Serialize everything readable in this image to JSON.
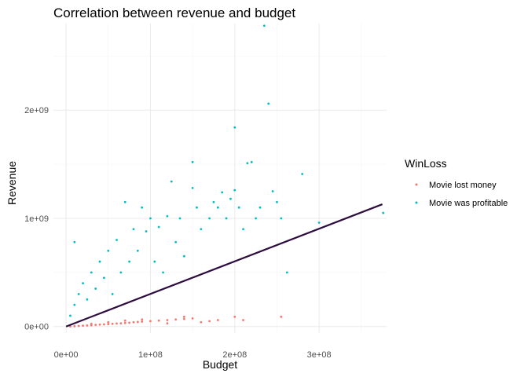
{
  "chart_data": {
    "type": "scatter",
    "title": "Correlation between revenue and budget",
    "xlabel": "Budget",
    "ylabel": "Revenue",
    "xlim": [
      -15000000,
      380000000
    ],
    "ylim": [
      -60000000,
      2800000000
    ],
    "xticks": [
      0,
      100000000,
      200000000,
      300000000
    ],
    "xtick_labels": [
      "0e+00",
      "1e+08",
      "2e+08",
      "3e+08"
    ],
    "yticks": [
      0,
      1000000000,
      2000000000
    ],
    "ytick_labels": [
      "0e+00",
      "1e+09",
      "2e+09"
    ],
    "grid": true,
    "legend": {
      "title": "WinLoss",
      "position": "right"
    },
    "series": [
      {
        "name": "Movie lost money",
        "color": "#F8766D",
        "points": [
          [
            5000000,
            1000000
          ],
          [
            10000000,
            3000000
          ],
          [
            15000000,
            5000000
          ],
          [
            20000000,
            8000000
          ],
          [
            25000000,
            10000000
          ],
          [
            30000000,
            12000000
          ],
          [
            35000000,
            15000000
          ],
          [
            40000000,
            18000000
          ],
          [
            45000000,
            20000000
          ],
          [
            50000000,
            22000000
          ],
          [
            55000000,
            25000000
          ],
          [
            60000000,
            28000000
          ],
          [
            65000000,
            30000000
          ],
          [
            70000000,
            33000000
          ],
          [
            75000000,
            35000000
          ],
          [
            80000000,
            40000000
          ],
          [
            85000000,
            42000000
          ],
          [
            90000000,
            45000000
          ],
          [
            100000000,
            50000000
          ],
          [
            110000000,
            55000000
          ],
          [
            120000000,
            60000000
          ],
          [
            130000000,
            65000000
          ],
          [
            140000000,
            70000000
          ],
          [
            150000000,
            75000000
          ],
          [
            160000000,
            40000000
          ],
          [
            170000000,
            50000000
          ],
          [
            180000000,
            60000000
          ],
          [
            200000000,
            90000000
          ],
          [
            210000000,
            60000000
          ],
          [
            255000000,
            90000000
          ],
          [
            30000000,
            25000000
          ],
          [
            50000000,
            40000000
          ],
          [
            70000000,
            55000000
          ],
          [
            90000000,
            65000000
          ],
          [
            120000000,
            30000000
          ],
          [
            140000000,
            90000000
          ]
        ]
      },
      {
        "name": "Movie was profitable",
        "color": "#00BFC4",
        "points": [
          [
            5000000,
            100000000
          ],
          [
            10000000,
            200000000
          ],
          [
            10000000,
            780000000
          ],
          [
            15000000,
            300000000
          ],
          [
            20000000,
            400000000
          ],
          [
            25000000,
            250000000
          ],
          [
            30000000,
            500000000
          ],
          [
            35000000,
            350000000
          ],
          [
            40000000,
            600000000
          ],
          [
            45000000,
            450000000
          ],
          [
            50000000,
            700000000
          ],
          [
            55000000,
            300000000
          ],
          [
            60000000,
            800000000
          ],
          [
            65000000,
            500000000
          ],
          [
            70000000,
            1150000000
          ],
          [
            75000000,
            600000000
          ],
          [
            80000000,
            900000000
          ],
          [
            85000000,
            700000000
          ],
          [
            90000000,
            1100000000
          ],
          [
            95000000,
            880000000
          ],
          [
            100000000,
            1000000000
          ],
          [
            105000000,
            600000000
          ],
          [
            110000000,
            920000000
          ],
          [
            115000000,
            500000000
          ],
          [
            120000000,
            1020000000
          ],
          [
            125000000,
            1340000000
          ],
          [
            130000000,
            780000000
          ],
          [
            135000000,
            1000000000
          ],
          [
            140000000,
            650000000
          ],
          [
            150000000,
            1520000000
          ],
          [
            150000000,
            1280000000
          ],
          [
            155000000,
            1100000000
          ],
          [
            160000000,
            900000000
          ],
          [
            170000000,
            1000000000
          ],
          [
            175000000,
            1150000000
          ],
          [
            180000000,
            1100000000
          ],
          [
            185000000,
            1240000000
          ],
          [
            190000000,
            1000000000
          ],
          [
            195000000,
            1180000000
          ],
          [
            200000000,
            1840000000
          ],
          [
            200000000,
            1260000000
          ],
          [
            205000000,
            1100000000
          ],
          [
            210000000,
            900000000
          ],
          [
            215000000,
            1510000000
          ],
          [
            220000000,
            1520000000
          ],
          [
            225000000,
            1000000000
          ],
          [
            230000000,
            1100000000
          ],
          [
            235000000,
            2780000000
          ],
          [
            240000000,
            2060000000
          ],
          [
            245000000,
            1250000000
          ],
          [
            250000000,
            1150000000
          ],
          [
            255000000,
            1000000000
          ],
          [
            262000000,
            500000000
          ],
          [
            280000000,
            1410000000
          ],
          [
            300000000,
            960000000
          ],
          [
            376000000,
            1050000000
          ]
        ]
      }
    ],
    "trend_line": {
      "color": "#2d0d3f",
      "points": [
        [
          0,
          0
        ],
        [
          375000000,
          1130000000
        ]
      ]
    }
  }
}
